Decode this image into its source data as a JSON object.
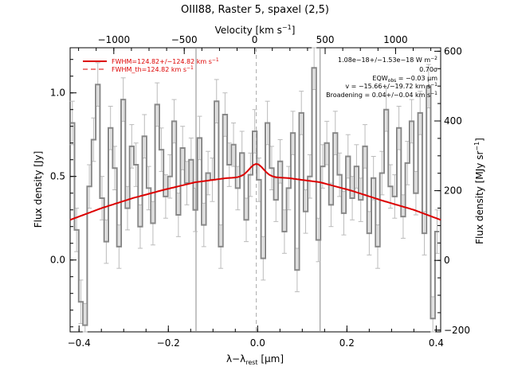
{
  "chart_data": {
    "type": "line",
    "title": "OIII88, Raster 5, spaxel (2,5)",
    "xlabel_pre": "λ−λ",
    "xlabel_sub": "rest",
    "xlabel_post": " [μm]",
    "ylabel": "Flux density [Jy]",
    "top_axis_label_pre": "Velocity [km s",
    "top_axis_label_sup": "−1",
    "top_axis_label_post": "]",
    "right_axis_label_pre": "Flux density [MJy sr",
    "right_axis_label_sup": "−1",
    "right_axis_label_post": "]",
    "xlim": [
      -0.42,
      0.41
    ],
    "ylim": [
      -0.43,
      1.27
    ],
    "top_lim": [
      -1310,
      1320
    ],
    "right_lim": [
      -205,
      610
    ],
    "x_ticks": [
      -0.4,
      -0.2,
      0.0,
      0.2,
      0.4
    ],
    "x_tick_labels": [
      "−0.4",
      "−0.2",
      "0.0",
      "0.2",
      "0.4"
    ],
    "y_ticks": [
      0.0,
      0.5,
      1.0
    ],
    "y_tick_labels": [
      "0.0",
      "0.5",
      "1.0"
    ],
    "top_ticks": [
      -1000,
      -500,
      0,
      500,
      1000
    ],
    "top_tick_labels": [
      "−1000",
      "−500",
      "0",
      "500",
      "1000"
    ],
    "right_ticks": [
      -200,
      0,
      200,
      400,
      600
    ],
    "right_tick_labels": [
      "−200",
      "0",
      "200",
      "400",
      "600"
    ],
    "vertical_lines": [
      -0.138,
      0.14
    ],
    "line_center": -0.003,
    "legend": [
      {
        "label_pre": "FWHM=124.82+/−124.82 km s",
        "label_sup": "−1",
        "color": "#dd0000",
        "style": "solid"
      },
      {
        "label_pre": "FWHM_th=124.82 km s",
        "label_sup": "−1",
        "color": "#dd0000",
        "style": "dashed"
      }
    ],
    "annotations": [
      {
        "pre": "1.08e−18+/−1.53e−18 W m",
        "sup": "−2",
        "post": ""
      },
      {
        "pre": "0.70σ",
        "sup": "",
        "post": ""
      },
      {
        "pre": "EQW",
        "sub": "obs",
        "post": " = −0.03 μm"
      },
      {
        "pre": "v = −15.66+/−19.72 km s",
        "sup": "−1",
        "post": ""
      },
      {
        "pre": "Broadening = 0.04+/−0.04 km s",
        "sup": "−1",
        "post": ""
      }
    ],
    "series": [
      {
        "kind": "spectrum-step",
        "color": "#888888",
        "bin_width": 0.0095,
        "x": [
          -0.415,
          -0.4055,
          -0.396,
          -0.3865,
          -0.377,
          -0.3675,
          -0.358,
          -0.3485,
          -0.339,
          -0.3295,
          -0.32,
          -0.3105,
          -0.301,
          -0.2915,
          -0.282,
          -0.2725,
          -0.263,
          -0.2535,
          -0.244,
          -0.2345,
          -0.225,
          -0.2155,
          -0.206,
          -0.1965,
          -0.187,
          -0.1775,
          -0.168,
          -0.1585,
          -0.149,
          -0.1395,
          -0.13,
          -0.1205,
          -0.111,
          -0.1015,
          -0.092,
          -0.0825,
          -0.073,
          -0.0635,
          -0.054,
          -0.0445,
          -0.035,
          -0.0255,
          -0.016,
          -0.0065,
          0.003,
          0.0125,
          0.022,
          0.0315,
          0.041,
          0.0505,
          0.06,
          0.0695,
          0.079,
          0.0885,
          0.098,
          0.1075,
          0.117,
          0.1265,
          0.136,
          0.1455,
          0.155,
          0.1645,
          0.174,
          0.1835,
          0.193,
          0.2025,
          0.212,
          0.2215,
          0.231,
          0.2405,
          0.25,
          0.2595,
          0.269,
          0.2785,
          0.288,
          0.2975,
          0.307,
          0.3165,
          0.326,
          0.3355,
          0.345,
          0.3545,
          0.364,
          0.3735,
          0.383,
          0.3925,
          0.402
        ],
        "y": [
          0.82,
          0.18,
          -0.25,
          -0.39,
          0.44,
          0.72,
          1.05,
          0.37,
          0.11,
          0.79,
          0.55,
          0.08,
          0.96,
          0.31,
          0.68,
          0.57,
          0.2,
          0.74,
          0.43,
          0.22,
          0.93,
          0.66,
          0.38,
          0.5,
          0.83,
          0.27,
          0.67,
          0.46,
          0.6,
          0.3,
          0.73,
          0.21,
          0.52,
          0.48,
          0.95,
          0.08,
          0.87,
          0.57,
          0.69,
          0.43,
          0.64,
          0.24,
          0.51,
          0.77,
          0.48,
          0.01,
          0.82,
          0.55,
          0.36,
          0.59,
          0.17,
          0.43,
          0.76,
          -0.06,
          0.88,
          0.29,
          0.5,
          1.15,
          0.12,
          0.56,
          0.7,
          0.33,
          0.76,
          0.51,
          0.28,
          0.62,
          0.37,
          0.56,
          0.36,
          0.68,
          0.16,
          0.49,
          0.08,
          0.52,
          0.9,
          0.44,
          0.38,
          0.79,
          0.26,
          0.58,
          0.83,
          0.4,
          0.88,
          0.16,
          1.04,
          -0.35,
          0.17
        ],
        "err": 0.13
      },
      {
        "kind": "continuum-fit",
        "color": "#dd0000",
        "x": [
          -0.42,
          -0.35,
          -0.28,
          -0.21,
          -0.14,
          -0.07,
          0.0,
          0.07,
          0.14,
          0.21,
          0.28,
          0.35,
          0.41
        ],
        "y": [
          0.24,
          0.31,
          0.37,
          0.42,
          0.465,
          0.49,
          0.5,
          0.49,
          0.465,
          0.415,
          0.355,
          0.3,
          0.24
        ]
      },
      {
        "kind": "gaussian-line",
        "color": "#dd0000",
        "center": -0.003,
        "amplitude": 0.075,
        "sigma": 0.016
      }
    ]
  }
}
